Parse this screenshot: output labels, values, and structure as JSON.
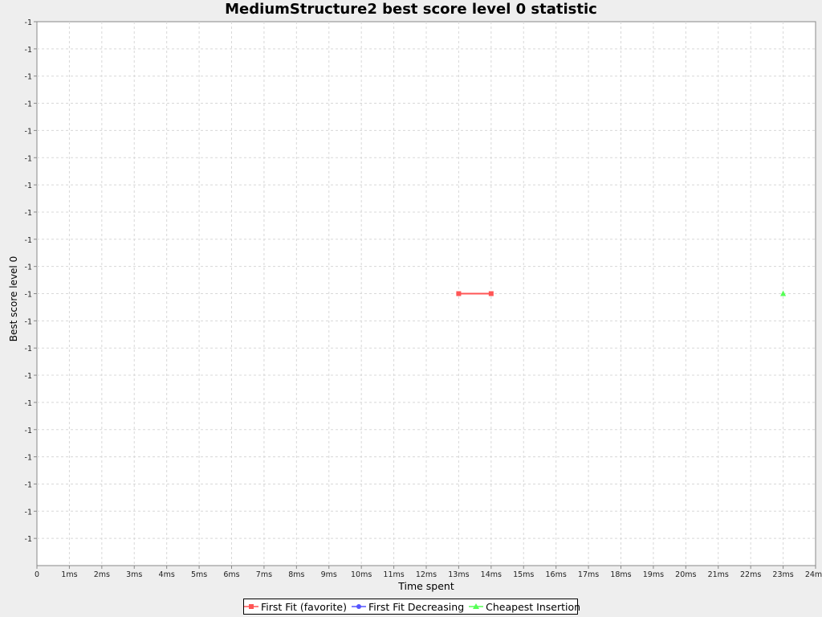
{
  "chart_data": {
    "type": "line",
    "title": "MediumStructure2 best score level 0 statistic",
    "xlabel": "Time spent",
    "ylabel": "Best score level 0",
    "x_ticks": [
      "0",
      "1ms",
      "2ms",
      "3ms",
      "4ms",
      "5ms",
      "6ms",
      "7ms",
      "8ms",
      "9ms",
      "10ms",
      "11ms",
      "12ms",
      "13ms",
      "14ms",
      "15ms",
      "16ms",
      "17ms",
      "18ms",
      "19ms",
      "20ms",
      "21ms",
      "22ms",
      "23ms",
      "24ms"
    ],
    "y_ticks": [
      "-1",
      "-1",
      "-1",
      "-1",
      "-1",
      "-1",
      "-1",
      "-1",
      "-1",
      "-1",
      "-1",
      "-1",
      "-1",
      "-1",
      "-1",
      "-1",
      "-1",
      "-1",
      "-1",
      "-1"
    ],
    "xlim": [
      0,
      24
    ],
    "grid": true,
    "legend_position": "bottom",
    "series": [
      {
        "name": "First Fit (favorite)",
        "color": "#ff5555",
        "marker": "square",
        "x": [
          13,
          14
        ],
        "y": [
          -1,
          -1
        ]
      },
      {
        "name": "First Fit Decreasing",
        "color": "#5555ff",
        "marker": "circle",
        "x": [],
        "y": []
      },
      {
        "name": "Cheapest Insertion",
        "color": "#55ff55",
        "marker": "triangle",
        "x": [
          23
        ],
        "y": [
          -1
        ]
      }
    ]
  }
}
